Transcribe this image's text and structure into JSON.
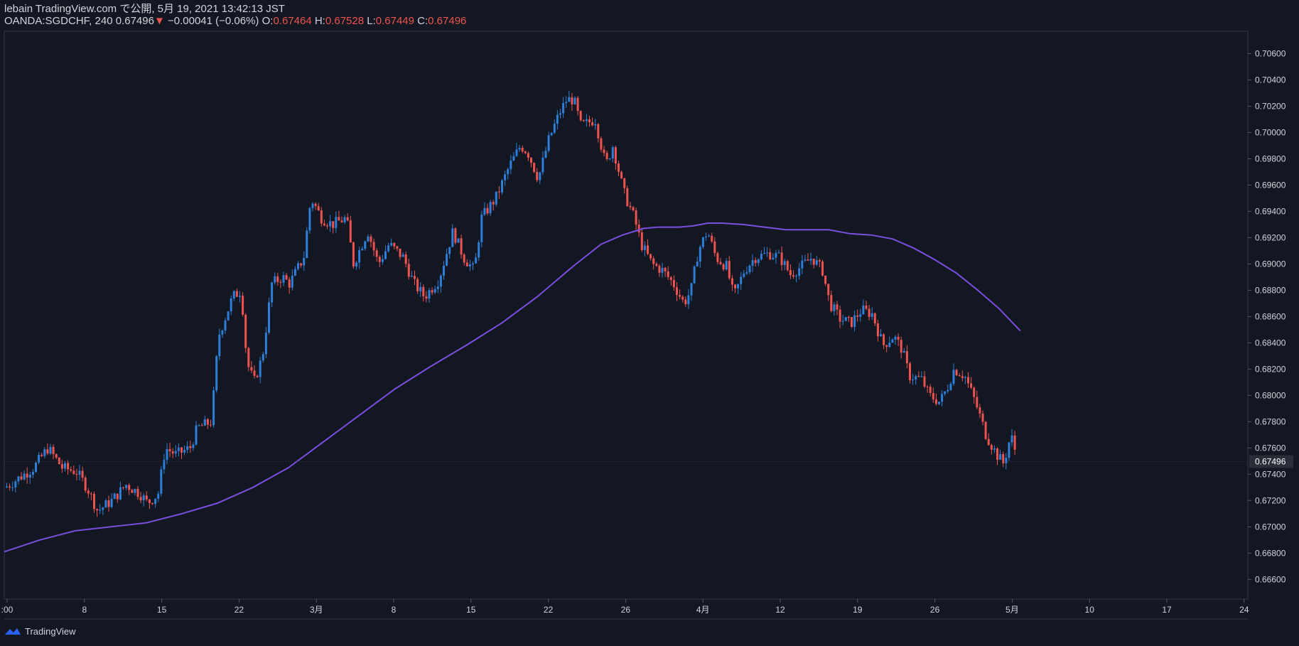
{
  "header": {
    "line1": "lebain TradingView.com で公開, 5月 19, 2021 13:42:13 JST",
    "symbol": "OANDA:SGDCHF, 240",
    "last": "0.67496",
    "arrow": "▼",
    "change": "−0.00041 (−0.06%)",
    "o_label": "O:",
    "o": "0.67464",
    "h_label": "H:",
    "h": "0.67528",
    "l_label": "L:",
    "l": "0.67449",
    "c_label": "C:",
    "c": "0.67496"
  },
  "footer": {
    "brand": "TradingView"
  },
  "colors": {
    "background": "#131722",
    "up": "#2d7fd9",
    "down": "#ef5350",
    "ma": "#7a4fe0",
    "axis": "#d1d4dc",
    "last_price_bg": "#2a2e39"
  },
  "chart_data": {
    "type": "candlestick",
    "y_range": [
      0.6645,
      0.7077
    ],
    "y_ticks": [
      "0.70600",
      "0.70400",
      "0.70200",
      "0.70000",
      "0.69800",
      "0.69600",
      "0.69400",
      "0.69200",
      "0.69000",
      "0.68800",
      "0.68600",
      "0.68400",
      "0.68200",
      "0.68000",
      "0.67800",
      "0.67600",
      "0.67400",
      "0.67200",
      "0.67000",
      "0.66800",
      "0.66600"
    ],
    "x_ticks": [
      ":00",
      "8",
      "15",
      "22",
      "3月",
      "8",
      "15",
      "22",
      "26",
      "4月",
      "12",
      "19",
      "26",
      "5月",
      "10",
      "17",
      "24"
    ],
    "last_price_label": "0.67496",
    "close_path": [
      [
        0,
        0.673
      ],
      [
        40,
        0.6745
      ],
      [
        60,
        0.676
      ],
      [
        80,
        0.6745
      ],
      [
        100,
        0.6742
      ],
      [
        115,
        0.673
      ],
      [
        130,
        0.6712
      ],
      [
        150,
        0.672
      ],
      [
        170,
        0.6732
      ],
      [
        190,
        0.6725
      ],
      [
        200,
        0.6718
      ],
      [
        215,
        0.6725
      ],
      [
        225,
        0.676
      ],
      [
        240,
        0.6755
      ],
      [
        260,
        0.676
      ],
      [
        270,
        0.6775
      ],
      [
        290,
        0.678
      ],
      [
        300,
        0.6845
      ],
      [
        320,
        0.6875
      ],
      [
        332,
        0.688
      ],
      [
        340,
        0.6825
      ],
      [
        350,
        0.681
      ],
      [
        362,
        0.683
      ],
      [
        375,
        0.6885
      ],
      [
        390,
        0.689
      ],
      [
        400,
        0.6885
      ],
      [
        420,
        0.6905
      ],
      [
        430,
        0.695
      ],
      [
        445,
        0.6935
      ],
      [
        460,
        0.693
      ],
      [
        480,
        0.6935
      ],
      [
        490,
        0.69
      ],
      [
        510,
        0.6925
      ],
      [
        525,
        0.69
      ],
      [
        540,
        0.6915
      ],
      [
        560,
        0.6905
      ],
      [
        575,
        0.6885
      ],
      [
        590,
        0.6875
      ],
      [
        610,
        0.6888
      ],
      [
        630,
        0.6925
      ],
      [
        645,
        0.6905
      ],
      [
        660,
        0.6895
      ],
      [
        670,
        0.6935
      ],
      [
        690,
        0.695
      ],
      [
        710,
        0.6975
      ],
      [
        725,
        0.699
      ],
      [
        735,
        0.6985
      ],
      [
        750,
        0.6965
      ],
      [
        765,
        0.6995
      ],
      [
        780,
        0.7015
      ],
      [
        790,
        0.7025
      ],
      [
        800,
        0.7025
      ],
      [
        810,
        0.7005
      ],
      [
        830,
        0.701
      ],
      [
        845,
        0.6975
      ],
      [
        855,
        0.699
      ],
      [
        870,
        0.6955
      ],
      [
        885,
        0.6935
      ],
      [
        895,
        0.6915
      ],
      [
        910,
        0.69
      ],
      [
        925,
        0.6895
      ],
      [
        940,
        0.6885
      ],
      [
        955,
        0.687
      ],
      [
        965,
        0.688
      ],
      [
        975,
        0.691
      ],
      [
        988,
        0.6925
      ],
      [
        1000,
        0.6905
      ],
      [
        1015,
        0.6898
      ],
      [
        1025,
        0.6875
      ],
      [
        1040,
        0.6895
      ],
      [
        1055,
        0.6905
      ],
      [
        1075,
        0.6908
      ],
      [
        1090,
        0.6905
      ],
      [
        1105,
        0.6892
      ],
      [
        1120,
        0.6898
      ],
      [
        1135,
        0.6905
      ],
      [
        1150,
        0.6895
      ],
      [
        1160,
        0.687
      ],
      [
        1175,
        0.6858
      ],
      [
        1190,
        0.6855
      ],
      [
        1205,
        0.6865
      ],
      [
        1220,
        0.6862
      ],
      [
        1235,
        0.6838
      ],
      [
        1250,
        0.6845
      ],
      [
        1262,
        0.6835
      ],
      [
        1272,
        0.6815
      ],
      [
        1290,
        0.6812
      ],
      [
        1300,
        0.68
      ],
      [
        1315,
        0.6795
      ],
      [
        1325,
        0.6805
      ],
      [
        1335,
        0.682
      ],
      [
        1350,
        0.6815
      ],
      [
        1365,
        0.6795
      ],
      [
        1380,
        0.677
      ],
      [
        1395,
        0.6755
      ],
      [
        1405,
        0.6748
      ],
      [
        1415,
        0.677
      ],
      [
        1425,
        0.675
      ],
      [
        1430,
        0.675
      ]
    ],
    "ma_series": [
      [
        0,
        0.6681
      ],
      [
        50,
        0.669
      ],
      [
        100,
        0.6697
      ],
      [
        150,
        0.67
      ],
      [
        200,
        0.6703
      ],
      [
        250,
        0.671
      ],
      [
        300,
        0.6718
      ],
      [
        350,
        0.673
      ],
      [
        400,
        0.6745
      ],
      [
        450,
        0.6765
      ],
      [
        500,
        0.6785
      ],
      [
        550,
        0.6805
      ],
      [
        600,
        0.6822
      ],
      [
        650,
        0.6838
      ],
      [
        700,
        0.6855
      ],
      [
        750,
        0.6875
      ],
      [
        800,
        0.6898
      ],
      [
        840,
        0.6915
      ],
      [
        870,
        0.6922
      ],
      [
        900,
        0.6927
      ],
      [
        920,
        0.6928
      ],
      [
        950,
        0.6928
      ],
      [
        970,
        0.6929
      ],
      [
        990,
        0.6931
      ],
      [
        1010,
        0.6931
      ],
      [
        1040,
        0.693
      ],
      [
        1070,
        0.6928
      ],
      [
        1100,
        0.6926
      ],
      [
        1130,
        0.6926
      ],
      [
        1160,
        0.6926
      ],
      [
        1190,
        0.6923
      ],
      [
        1220,
        0.6922
      ],
      [
        1250,
        0.6919
      ],
      [
        1280,
        0.6912
      ],
      [
        1310,
        0.6903
      ],
      [
        1340,
        0.6893
      ],
      [
        1370,
        0.688
      ],
      [
        1400,
        0.6866
      ],
      [
        1430,
        0.6849
      ]
    ]
  }
}
